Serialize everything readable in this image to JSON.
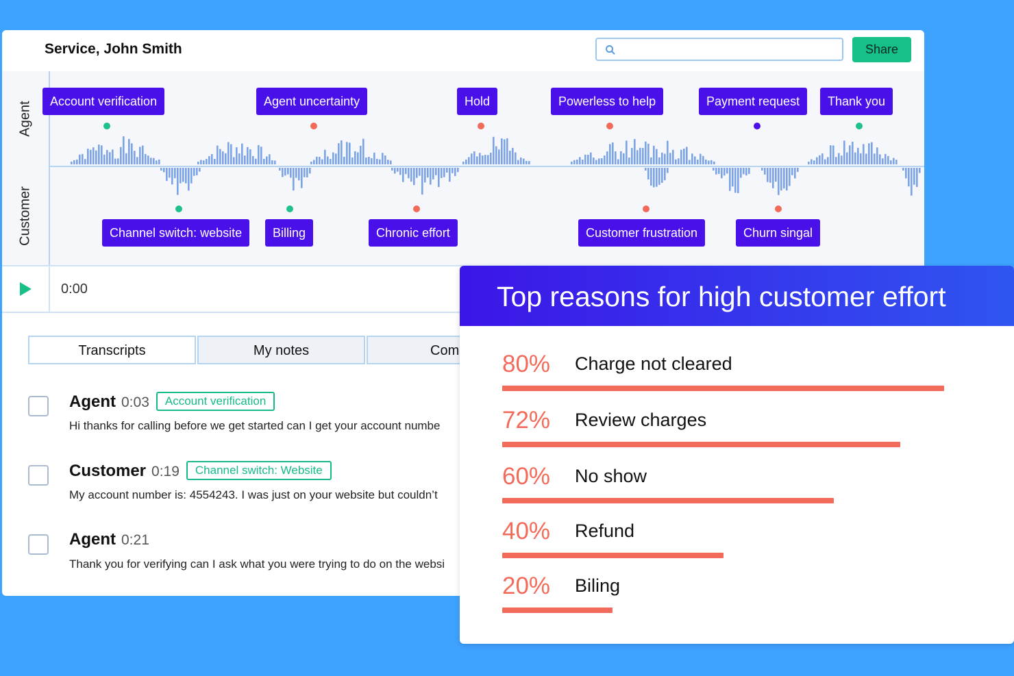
{
  "header": {
    "title": "Service, John Smith",
    "share_label": "Share",
    "search_placeholder": ""
  },
  "timeline": {
    "rows": {
      "agent": "Agent",
      "customer": "Customer"
    },
    "agent_tags": [
      "Account verification",
      "Agent uncertainty",
      "Hold",
      "Powerless to help",
      "Payment request",
      "Thank you"
    ],
    "customer_tags": [
      "Channel switch: website",
      "Billing",
      "Chronic effort",
      "Customer frustration",
      "Churn singal"
    ]
  },
  "player": {
    "time": "0:00"
  },
  "tabs": [
    "Transcripts",
    "My notes",
    "Comm"
  ],
  "transcript": [
    {
      "speaker": "Agent",
      "time": "0:03",
      "tag": "Account verification",
      "text": "Hi thanks for calling before we get started can I get your account numbe"
    },
    {
      "speaker": "Customer",
      "time": "0:19",
      "tag": "Channel switch: Website",
      "text": "My account number is: 4554243. I was just on your website but couldn’t"
    },
    {
      "speaker": "Agent",
      "time": "0:21",
      "tag": "",
      "text": "Thank you for verifying can I ask what you were trying to do on the websi"
    }
  ],
  "reasons": {
    "title": "Top reasons for high customer effort",
    "items": [
      {
        "pct": "80%",
        "label": "Charge not cleared",
        "value": 0.8
      },
      {
        "pct": "72%",
        "label": "Review charges",
        "value": 0.72
      },
      {
        "pct": "60%",
        "label": "No show",
        "value": 0.6
      },
      {
        "pct": "40%",
        "label": "Refund",
        "value": 0.4
      },
      {
        "pct": "20%",
        "label": "Biling",
        "value": 0.2
      }
    ]
  },
  "colors": {
    "background": "#3ea2ff",
    "tag": "#4a10ea",
    "accent_green": "#1fc08d",
    "accent_red": "#f26b5a",
    "waveform": "#7aa3e8"
  }
}
